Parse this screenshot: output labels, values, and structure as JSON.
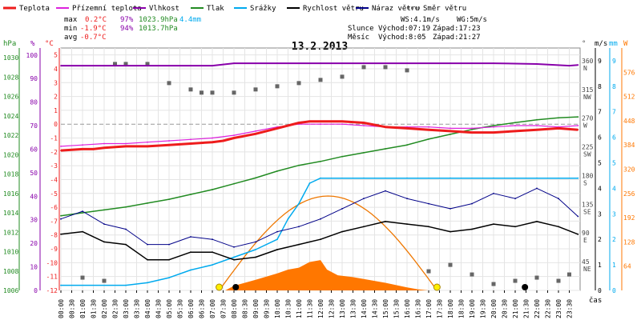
{
  "title": "13.2.2013",
  "legend": [
    {
      "label": "Teplota",
      "color": "#ee1c1c"
    },
    {
      "label": "Přízemní teplota",
      "color": "#dd22dd"
    },
    {
      "label": "Vlhkost",
      "color": "#8800aa"
    },
    {
      "label": "Tlak",
      "color": "#228b22"
    },
    {
      "label": "Srážky",
      "color": "#00aaee"
    },
    {
      "label": "Rychlost větru",
      "color": "#000000"
    },
    {
      "label": "Náraz větru",
      "color": "#000088"
    },
    {
      "label": "Směr větru",
      "color": "#666666"
    }
  ],
  "stats": {
    "max": {
      "label": "max",
      "temp": "0.2°C",
      "hum": "97%",
      "press": "1023.9hPa",
      "rain": "4.4mm"
    },
    "min": {
      "label": "min",
      "temp": "-1.9°C",
      "hum": "94%",
      "press": "1013.7hPa"
    },
    "avg": {
      "label": "avg",
      "temp": "-0.7°C"
    }
  },
  "wind_info": {
    "ws": "WS:4.1m/s",
    "wg": "WG:5m/s"
  },
  "sun": {
    "label": "Slunce",
    "rise": "Východ:07:19",
    "set": "Západ:17:23"
  },
  "moon": {
    "label": "Měsíc",
    "rise": "Východ:8:05",
    "set": "Západ:21:27"
  },
  "colors": {
    "temp": "#ee1c1c",
    "ground": "#dd22dd",
    "hum": "#8800aa",
    "press": "#228b22",
    "rain": "#00aaee",
    "wind": "#000000",
    "gust": "#000088",
    "dir": "#666666",
    "solar": "#ff7700",
    "sun": "#ee7700"
  },
  "chart_data": {
    "type": "line",
    "title": "13.2.2013",
    "xlabel": "čas",
    "x_ticks": [
      "00:00",
      "00:30",
      "01:00",
      "01:30",
      "02:00",
      "02:30",
      "03:00",
      "03:30",
      "04:00",
      "04:30",
      "05:00",
      "05:30",
      "06:00",
      "06:30",
      "07:00",
      "07:30",
      "08:00",
      "08:30",
      "09:00",
      "09:30",
      "10:00",
      "10:30",
      "11:00",
      "11:30",
      "12:00",
      "12:30",
      "13:00",
      "13:30",
      "14:00",
      "14:30",
      "15:00",
      "15:30",
      "16:00",
      "16:30",
      "17:00",
      "17:30",
      "18:00",
      "18:30",
      "19:00",
      "19:30",
      "20:00",
      "20:30",
      "21:00",
      "21:30",
      "22:00",
      "22:30",
      "23:00",
      "23:30"
    ],
    "axes": {
      "hpa": {
        "label": "hPa",
        "ticks": [
          "1030",
          "1028",
          "1026",
          "1024",
          "1022",
          "1020",
          "1018",
          "1016",
          "1014",
          "1012",
          "1010",
          "1008",
          "1006"
        ]
      },
      "pct": {
        "label": "%",
        "ticks": [
          "100",
          "90",
          "80",
          "70",
          "60",
          "50",
          "40",
          "30",
          "20",
          "10",
          "0"
        ]
      },
      "degc": {
        "label": "°C",
        "ticks": [
          "5",
          "4",
          "3",
          "2",
          "1",
          "0",
          "-1",
          "-2",
          "-3",
          "-4",
          "-5",
          "-6",
          "-7",
          "-8",
          "-9",
          "-10",
          "-11",
          "-12"
        ]
      },
      "deg": {
        "label": "°",
        "ticks": [
          {
            "v": "360",
            "d": "N"
          },
          {
            "v": "315",
            "d": "NW"
          },
          {
            "v": "270",
            "d": "W"
          },
          {
            "v": "225",
            "d": "SW"
          },
          {
            "v": "180",
            "d": "S"
          },
          {
            "v": "135",
            "d": "SE"
          },
          {
            "v": "90",
            "d": "E"
          },
          {
            "v": "45",
            "d": "NE"
          }
        ]
      },
      "ms": {
        "label": "m/s",
        "ticks": [
          "9",
          "8",
          "7",
          "6",
          "5",
          "4",
          "3",
          "2",
          "1",
          "0"
        ]
      },
      "mm": {
        "label": "mm",
        "ticks": [
          "9",
          "8",
          "7",
          "6",
          "5",
          "4",
          "3",
          "2",
          "1",
          "0"
        ]
      },
      "w": {
        "label": "W",
        "ticks": [
          "576",
          "512",
          "448",
          "384",
          "320",
          "256",
          "192",
          "128",
          "64"
        ]
      }
    },
    "ylim": {
      "hpa": [
        1006,
        1031
      ],
      "pct": [
        0,
        103
      ],
      "degc": [
        -12,
        5.5
      ],
      "deg": [
        0,
        380
      ],
      "ms": [
        0,
        9.5
      ],
      "mm": [
        0,
        9.5
      ],
      "w": [
        0,
        640
      ]
    },
    "series": [
      {
        "name": "Teplota",
        "axis": "degc",
        "x": [
          0,
          1,
          1.5,
          2,
          3,
          4,
          5,
          6,
          7,
          7.5,
          8,
          9,
          10,
          11,
          11.5,
          12,
          13,
          14,
          15,
          16,
          17,
          18,
          19,
          20,
          21,
          22,
          23,
          23.9
        ],
        "y": [
          -1.9,
          -1.8,
          -1.8,
          -1.7,
          -1.6,
          -1.6,
          -1.5,
          -1.4,
          -1.3,
          -1.2,
          -1.0,
          -0.7,
          -0.3,
          0.1,
          0.2,
          0.2,
          0.2,
          0.1,
          -0.2,
          -0.3,
          -0.4,
          -0.5,
          -0.6,
          -0.6,
          -0.5,
          -0.4,
          -0.3,
          -0.4
        ]
      },
      {
        "name": "Přízemní teplota",
        "axis": "degc",
        "x": [
          0,
          1,
          2,
          3,
          4,
          5,
          6,
          7,
          8,
          9,
          10,
          11,
          12,
          13,
          14,
          15,
          16,
          17,
          18,
          19,
          20,
          21,
          22,
          23,
          23.9
        ],
        "y": [
          -1.6,
          -1.5,
          -1.4,
          -1.4,
          -1.3,
          -1.2,
          -1.1,
          -1.0,
          -0.8,
          -0.5,
          -0.2,
          0.0,
          0.0,
          0.0,
          -0.1,
          -0.2,
          -0.2,
          -0.2,
          -0.3,
          -0.3,
          -0.2,
          -0.1,
          -0.1,
          -0.2,
          -0.1
        ]
      },
      {
        "name": "Vlhkost",
        "axis": "pct",
        "x": [
          0,
          6,
          7,
          7.5,
          8,
          10,
          12,
          14,
          16,
          18,
          20,
          22,
          23.5,
          23.9
        ],
        "y": [
          95.5,
          95.5,
          95.5,
          96,
          96.5,
          96.5,
          96.5,
          96.5,
          96.5,
          96.5,
          96.5,
          96.2,
          95.5,
          95.8
        ]
      },
      {
        "name": "Tlak",
        "axis": "hpa",
        "x": [
          0,
          1,
          2,
          3,
          4,
          5,
          6,
          7,
          8,
          9,
          10,
          11,
          12,
          13,
          14,
          15,
          16,
          17,
          18,
          19,
          20,
          21,
          22,
          23,
          23.9
        ],
        "y": [
          1013.7,
          1014.0,
          1014.3,
          1014.6,
          1015.0,
          1015.4,
          1015.9,
          1016.4,
          1017.0,
          1017.6,
          1018.3,
          1018.9,
          1019.3,
          1019.8,
          1020.2,
          1020.6,
          1021.0,
          1021.6,
          1022.1,
          1022.6,
          1023.0,
          1023.3,
          1023.6,
          1023.8,
          1023.9
        ]
      },
      {
        "name": "Srážky",
        "axis": "mm",
        "x": [
          0,
          3,
          4,
          5,
          6,
          7,
          8,
          9,
          10,
          10.5,
          11,
          11.5,
          12,
          14,
          16,
          18,
          20,
          22,
          23.9
        ],
        "y": [
          0.2,
          0.2,
          0.3,
          0.5,
          0.8,
          1.0,
          1.3,
          1.6,
          2.0,
          2.8,
          3.4,
          4.2,
          4.4,
          4.4,
          4.4,
          4.4,
          4.4,
          4.4,
          4.4
        ]
      },
      {
        "name": "Rychlost větru",
        "axis": "ms",
        "x": [
          0,
          1,
          2,
          3,
          4,
          5,
          6,
          7,
          8,
          9,
          10,
          11,
          12,
          13,
          14,
          15,
          16,
          17,
          18,
          19,
          20,
          21,
          22,
          23,
          23.9
        ],
        "y": [
          2.2,
          2.3,
          1.9,
          1.8,
          1.2,
          1.2,
          1.5,
          1.5,
          1.2,
          1.3,
          1.6,
          1.8,
          2.0,
          2.3,
          2.5,
          2.7,
          2.6,
          2.5,
          2.3,
          2.4,
          2.6,
          2.5,
          2.7,
          2.5,
          2.2
        ]
      },
      {
        "name": "Náraz větru",
        "axis": "ms",
        "x": [
          0,
          1,
          2,
          3,
          4,
          5,
          6,
          7,
          8,
          9,
          10,
          11,
          12,
          13,
          14,
          15,
          16,
          17,
          18,
          19,
          20,
          21,
          22,
          23,
          23.9
        ],
        "y": [
          2.8,
          3.1,
          2.6,
          2.4,
          1.8,
          1.8,
          2.1,
          2.0,
          1.7,
          1.9,
          2.3,
          2.5,
          2.8,
          3.2,
          3.6,
          3.9,
          3.6,
          3.4,
          3.2,
          3.4,
          3.8,
          3.6,
          4.0,
          3.6,
          2.9
        ]
      },
      {
        "name": "Směr větru",
        "axis": "deg",
        "x": [
          1,
          2,
          2.5,
          3,
          4,
          5,
          6,
          6.5,
          7,
          8,
          9,
          10,
          11,
          12,
          13,
          14,
          15,
          16,
          17,
          18,
          19,
          20,
          21,
          22,
          23,
          23.5
        ],
        "y": [
          20,
          15,
          355,
          355,
          355,
          325,
          315,
          310,
          310,
          310,
          315,
          320,
          325,
          330,
          335,
          350,
          350,
          345,
          30,
          40,
          25,
          10,
          15,
          20,
          15,
          25
        ]
      },
      {
        "name": "Solar radiation",
        "axis": "w",
        "x": [
          7.6,
          8,
          9,
          10,
          10.5,
          11,
          11.5,
          12,
          12.3,
          12.8,
          13.5,
          14,
          15,
          16,
          16.5,
          17
        ],
        "y": [
          0,
          12,
          28,
          45,
          55,
          60,
          75,
          80,
          55,
          40,
          35,
          30,
          20,
          8,
          3,
          0
        ]
      }
    ]
  }
}
